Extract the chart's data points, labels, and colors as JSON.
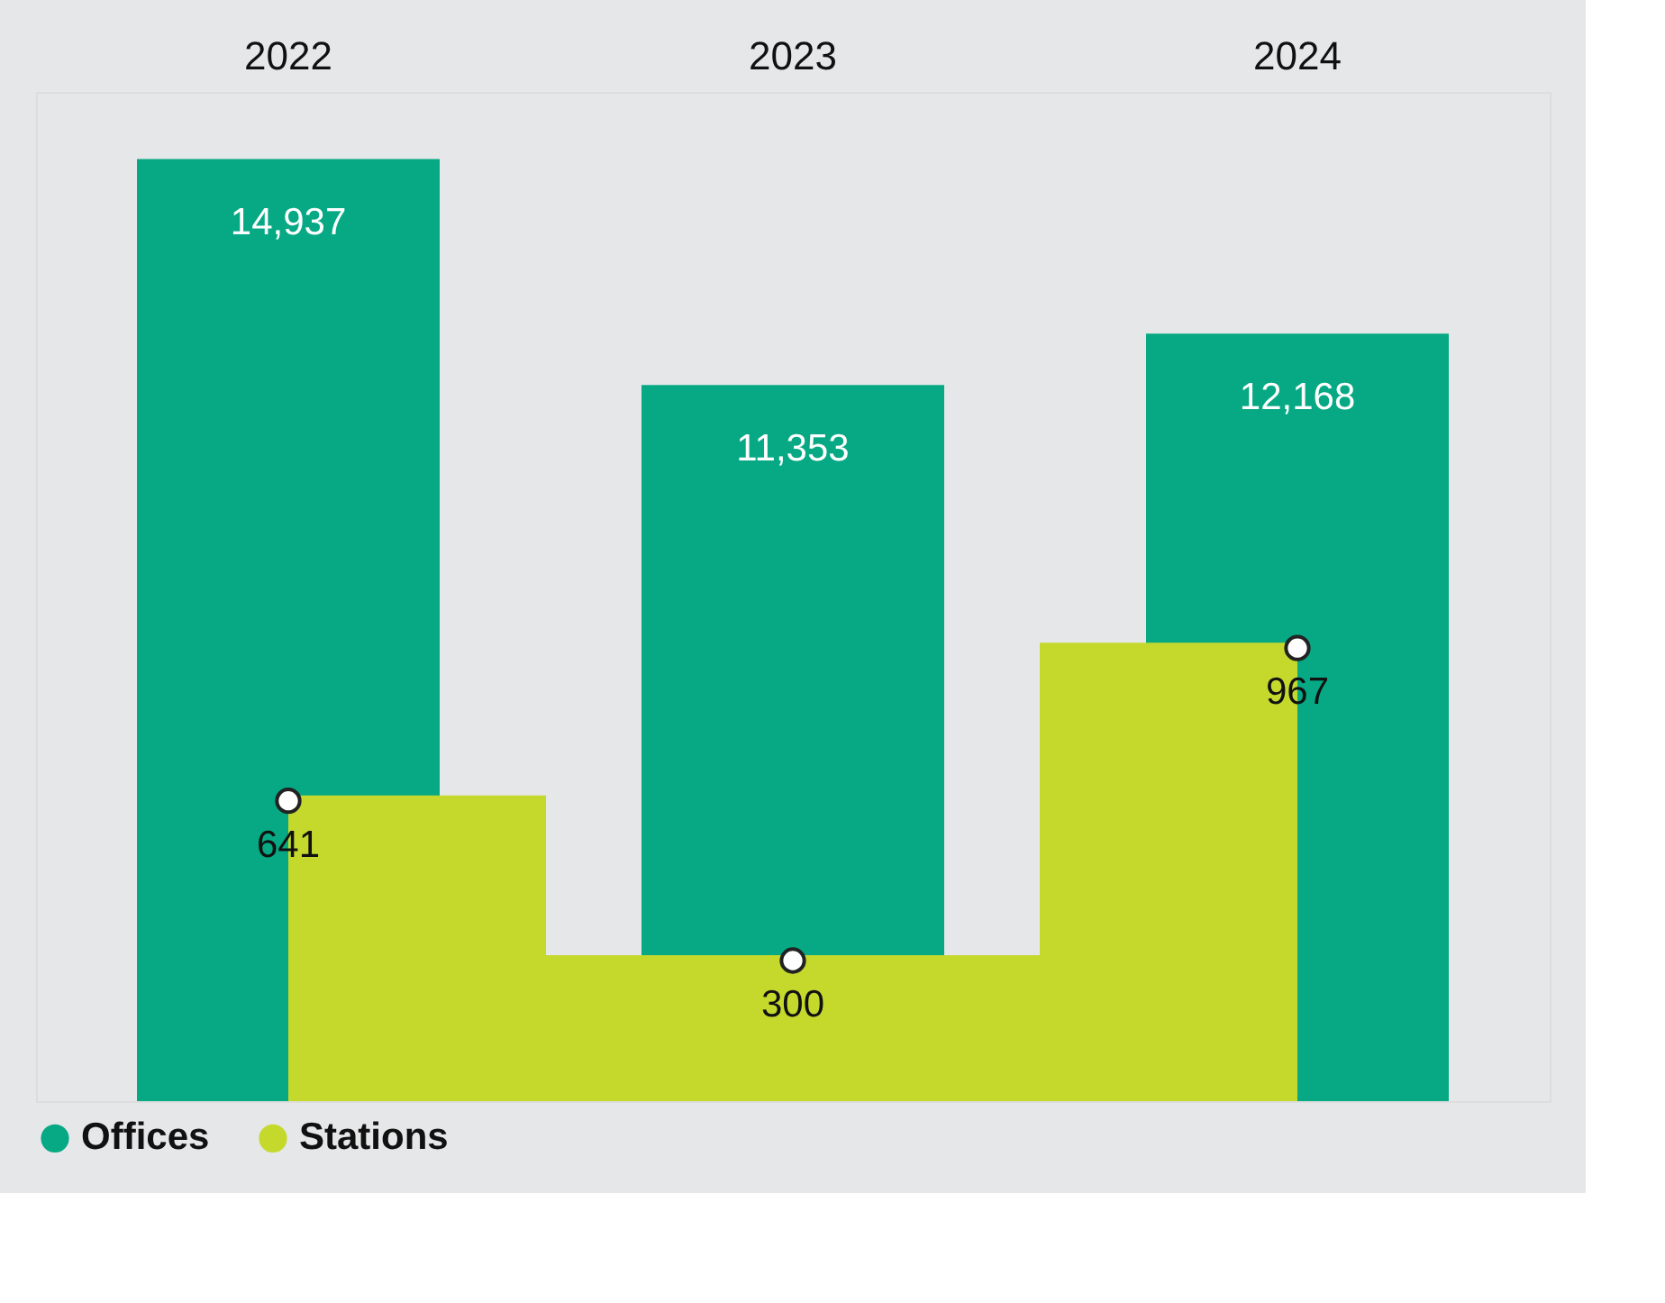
{
  "chart_data": {
    "type": "bar",
    "categories": [
      "2022",
      "2023",
      "2024"
    ],
    "series": [
      {
        "name": "Offices",
        "color": "#06a984",
        "values": [
          14937,
          11353,
          12168
        ],
        "value_labels": [
          "14,937",
          "11,353",
          "12,168"
        ]
      },
      {
        "name": "Stations",
        "type": "area",
        "axis": "y2",
        "color": "#c5d92d",
        "values": [
          641,
          300,
          967
        ],
        "value_labels": [
          "641",
          "300",
          "967"
        ]
      }
    ],
    "legend": "bottom",
    "marker": "circle"
  }
}
